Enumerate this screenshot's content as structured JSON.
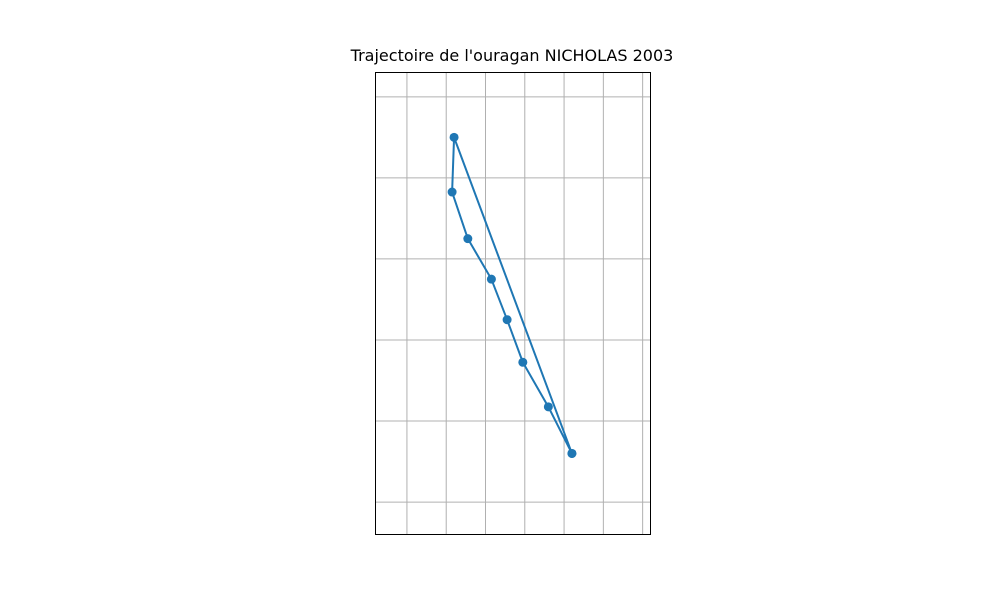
{
  "chart_data": {
    "type": "line",
    "title": "Trajectoire de l'ouragan NICHOLAS 2003",
    "xlabel": "",
    "ylabel": "",
    "grid": true,
    "series": [
      {
        "color": "#1f77b4",
        "marker": "circle",
        "points": [
          {
            "lon": 2.2,
            "lat": 14.2
          },
          {
            "lon": 1.6,
            "lat": 15.35
          },
          {
            "lon": 0.95,
            "lat": 16.45
          },
          {
            "lon": 0.55,
            "lat": 17.5
          },
          {
            "lon": 0.15,
            "lat": 18.5
          },
          {
            "lon": -0.45,
            "lat": 19.5
          },
          {
            "lon": -0.85,
            "lat": 20.65
          },
          {
            "lon": -0.8,
            "lat": 22.0
          },
          {
            "lon": 2.2,
            "lat": 14.2
          }
        ]
      }
    ],
    "xlim": [
      -2.8,
      4.2
    ],
    "ylim": [
      12.2,
      23.6
    ],
    "x_gridlines": [
      -2,
      -1,
      0,
      1,
      2,
      3,
      4
    ],
    "y_gridlines": [
      13,
      15,
      17,
      19,
      21,
      23
    ]
  }
}
